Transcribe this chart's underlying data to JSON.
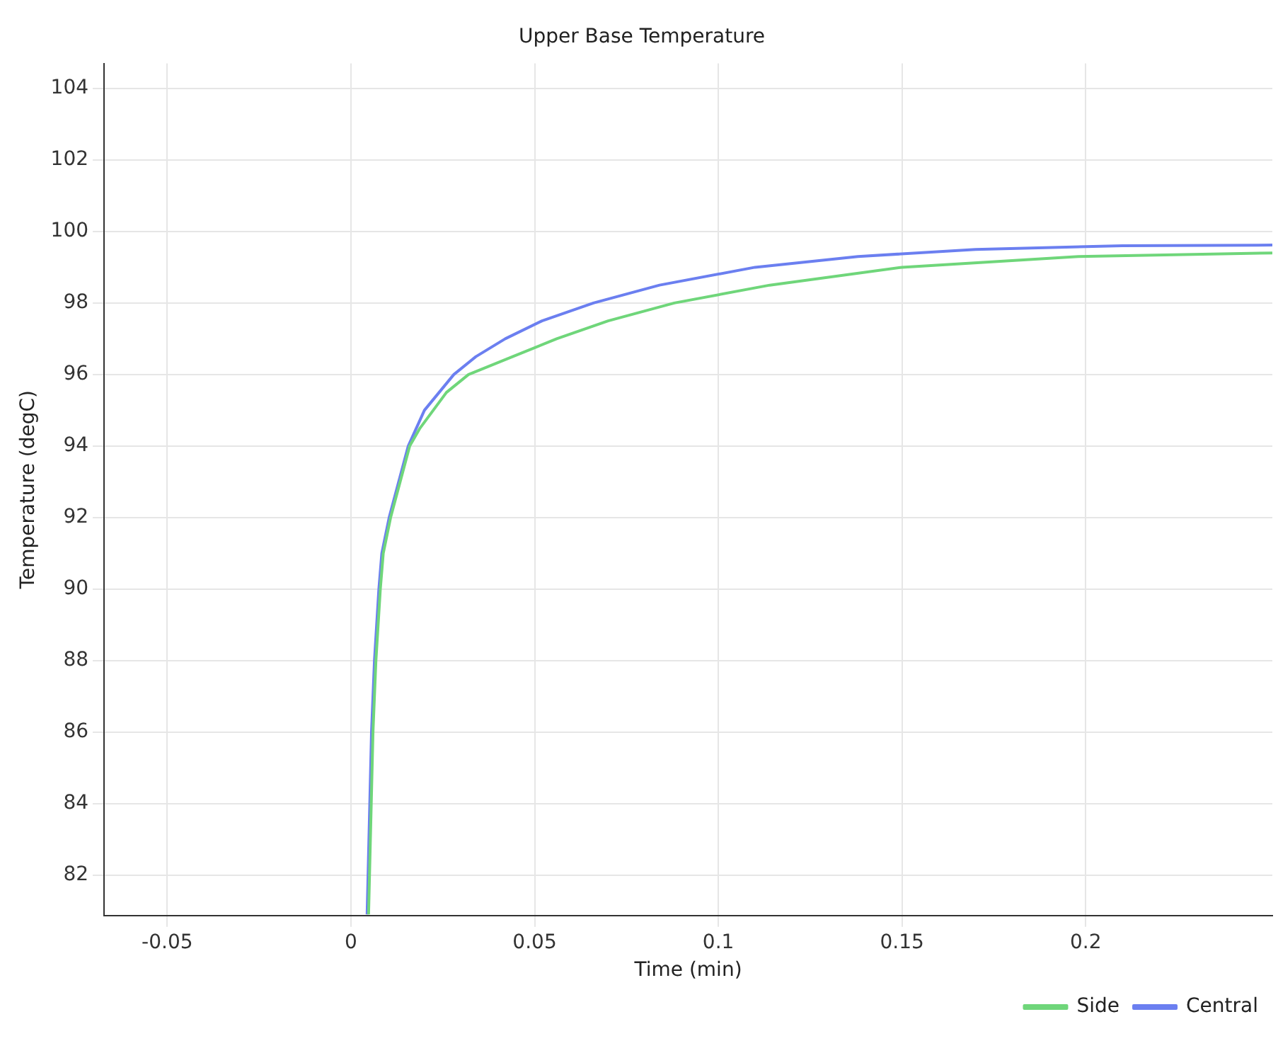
{
  "chart_data": {
    "type": "line",
    "title": "Upper Base Temperature",
    "xlabel": "Time (min)",
    "ylabel": "Temperature (degC)",
    "xlim": [
      -0.0672,
      0.2508
    ],
    "xticks": [
      -0.05,
      0,
      0.05,
      0.1,
      0.15,
      0.2
    ],
    "ylim": [
      80.87,
      104.7
    ],
    "yticks": [
      82,
      84,
      86,
      88,
      90,
      92,
      94,
      96,
      98,
      100,
      102,
      104
    ],
    "grid": true,
    "legend": "bottom right",
    "marker": "none",
    "line_style": "solid",
    "series": [
      {
        "name": "Central",
        "color": "#6b7ff0",
        "x": [
          0.0044,
          0.0056,
          0.0064,
          0.0076,
          0.0084,
          0.0104,
          0.0156,
          0.02,
          0.028,
          0.034,
          0.042,
          0.052,
          0.066,
          0.084,
          0.11,
          0.138,
          0.17,
          0.21,
          0.2508
        ],
        "values": [
          80.9,
          86,
          88,
          90,
          91,
          92,
          94,
          95,
          96,
          96.5,
          97,
          97.5,
          98,
          98.5,
          99,
          99.3,
          99.5,
          99.6,
          99.62
        ]
      },
      {
        "name": "Side",
        "color": "#6fd67a",
        "x": [
          0.0048,
          0.006,
          0.0068,
          0.008,
          0.0088,
          0.0108,
          0.016,
          0.0188,
          0.026,
          0.032,
          0.044,
          0.056,
          0.07,
          0.088,
          0.114,
          0.15,
          0.198,
          0.2508
        ],
        "values": [
          80.9,
          86,
          88,
          90,
          91,
          92,
          94,
          94.5,
          95.5,
          96,
          96.5,
          97,
          97.5,
          98,
          98.5,
          99,
          99.3,
          99.4
        ]
      }
    ]
  }
}
